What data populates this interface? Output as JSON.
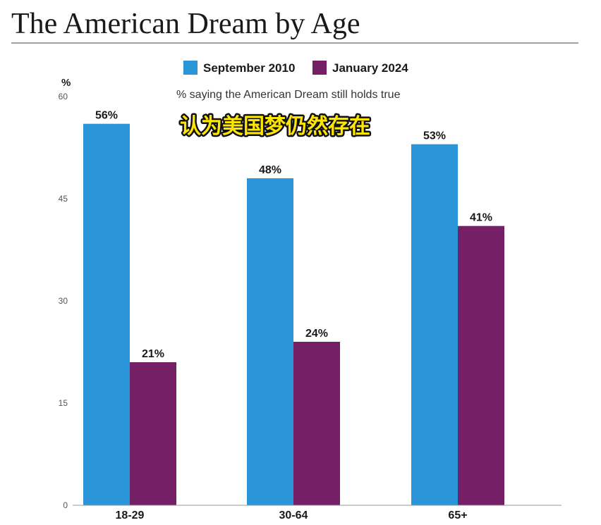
{
  "header": {
    "title": "The American Dream by Age"
  },
  "overlay_caption": "认为美国梦仍然存在",
  "colors": {
    "september_2010": "#2b95d9",
    "january_2024": "#741f66"
  },
  "chart_data": {
    "type": "bar",
    "title": "The American Dream by Age",
    "subtitle": "% saying the American Dream still holds true",
    "ylabel": "%",
    "xlabel": "",
    "ylim": [
      0,
      60
    ],
    "yticks": [
      0,
      15,
      30,
      45,
      60
    ],
    "categories": [
      "18-29",
      "30-64",
      "65+"
    ],
    "series": [
      {
        "name": "September 2010",
        "values": [
          56,
          48,
          53
        ],
        "labels": [
          "56%",
          "48%",
          "53%"
        ]
      },
      {
        "name": "January 2024",
        "values": [
          21,
          24,
          41
        ],
        "labels": [
          "21%",
          "24%",
          "41%"
        ]
      }
    ],
    "legend": "top-center",
    "grid": false
  }
}
